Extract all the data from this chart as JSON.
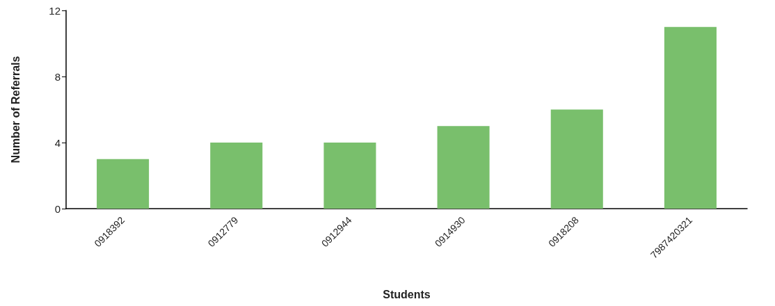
{
  "chart_data": {
    "type": "bar",
    "xlabel": "Students",
    "ylabel": "Number of Referrals",
    "categories": [
      "0918392",
      "0912779",
      "0912944",
      "0914930",
      "0918208",
      "7987420321"
    ],
    "values": [
      3,
      4,
      4,
      5,
      6,
      11
    ],
    "color": "#79bf6c",
    "ylim": [
      0,
      12
    ],
    "yticks": [
      0,
      4,
      8,
      12
    ],
    "grid": false
  }
}
